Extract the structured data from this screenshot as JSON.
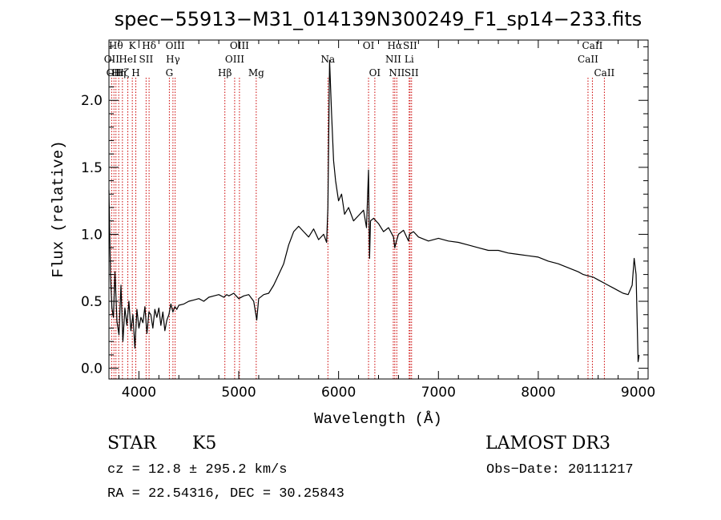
{
  "chart_data": {
    "type": "line",
    "title": "spec−55913−M31_014139N300249_F1_sp14−233.fits",
    "xlabel": "Wavelength (Å)",
    "ylabel": "Flux (relative)",
    "xlim": [
      3700,
      9100
    ],
    "ylim": [
      -0.08,
      2.45
    ],
    "xticks": [
      {
        "value": 4000,
        "label": "4000"
      },
      {
        "value": 5000,
        "label": "5000"
      },
      {
        "value": 6000,
        "label": "6000"
      },
      {
        "value": 7000,
        "label": "7000"
      },
      {
        "value": 8000,
        "label": "8000"
      },
      {
        "value": 9000,
        "label": "9000"
      }
    ],
    "yticks": [
      {
        "value": 0.0,
        "label": "0.0"
      },
      {
        "value": 0.5,
        "label": "0.5"
      },
      {
        "value": 1.0,
        "label": "1.0"
      },
      {
        "value": 1.5,
        "label": "1.5"
      },
      {
        "value": 2.0,
        "label": "2.0"
      }
    ],
    "grid": false,
    "line_color": "#000000",
    "marker_color": "#cc0000",
    "series": [
      {
        "x": [
          3700,
          3715,
          3730,
          3745,
          3760,
          3780,
          3800,
          3820,
          3840,
          3860,
          3880,
          3900,
          3920,
          3940,
          3960,
          3980,
          4000,
          4020,
          4040,
          4060,
          4080,
          4100,
          4120,
          4140,
          4160,
          4180,
          4200,
          4220,
          4240,
          4260,
          4280,
          4300,
          4320,
          4340,
          4360,
          4380,
          4400,
          4450,
          4500,
          4550,
          4600,
          4650,
          4700,
          4750,
          4800,
          4850,
          4880,
          4900,
          4950,
          5000,
          5050,
          5100,
          5150,
          5180,
          5200,
          5250,
          5300,
          5350,
          5400,
          5450,
          5500,
          5550,
          5600,
          5650,
          5700,
          5750,
          5800,
          5850,
          5880,
          5893,
          5910,
          5930,
          5950,
          5970,
          6000,
          6030,
          6060,
          6100,
          6150,
          6200,
          6250,
          6280,
          6300,
          6310,
          6320,
          6350,
          6400,
          6450,
          6500,
          6550,
          6563,
          6580,
          6600,
          6650,
          6700,
          6710,
          6750,
          6800,
          6900,
          7000,
          7100,
          7200,
          7300,
          7400,
          7500,
          7600,
          7700,
          7800,
          7900,
          8000,
          8100,
          8200,
          8300,
          8400,
          8450,
          8500,
          8550,
          8600,
          8650,
          8700,
          8750,
          8800,
          8850,
          8900,
          8940,
          8960,
          8980,
          9000,
          9010
        ],
        "y": [
          1.33,
          0.7,
          0.45,
          0.38,
          0.72,
          0.35,
          0.25,
          0.62,
          0.2,
          0.45,
          0.32,
          0.5,
          0.28,
          0.4,
          0.15,
          0.44,
          0.3,
          0.38,
          0.34,
          0.46,
          0.26,
          0.42,
          0.4,
          0.3,
          0.44,
          0.38,
          0.45,
          0.32,
          0.42,
          0.28,
          0.36,
          0.4,
          0.48,
          0.42,
          0.46,
          0.44,
          0.47,
          0.48,
          0.5,
          0.51,
          0.52,
          0.5,
          0.53,
          0.54,
          0.55,
          0.53,
          0.55,
          0.54,
          0.56,
          0.52,
          0.54,
          0.55,
          0.5,
          0.36,
          0.52,
          0.55,
          0.56,
          0.62,
          0.7,
          0.78,
          0.92,
          1.02,
          1.06,
          1.02,
          0.98,
          1.04,
          0.96,
          1.0,
          0.94,
          1.2,
          2.3,
          1.9,
          1.55,
          1.4,
          1.25,
          1.3,
          1.15,
          1.2,
          1.1,
          1.14,
          1.18,
          1.05,
          1.48,
          0.82,
          1.1,
          1.12,
          1.08,
          1.02,
          1.05,
          0.98,
          0.9,
          0.95,
          1.0,
          1.03,
          0.95,
          1.0,
          1.02,
          0.98,
          0.95,
          0.97,
          0.95,
          0.94,
          0.92,
          0.9,
          0.88,
          0.88,
          0.86,
          0.85,
          0.84,
          0.83,
          0.8,
          0.78,
          0.75,
          0.72,
          0.7,
          0.69,
          0.68,
          0.66,
          0.64,
          0.62,
          0.6,
          0.58,
          0.56,
          0.55,
          0.62,
          0.82,
          0.7,
          0.05,
          0.1
        ]
      }
    ],
    "line_markers": [
      {
        "x": 3727,
        "label": "OII",
        "row": 1
      },
      {
        "x": 3750,
        "label": "OII",
        "row": 2
      },
      {
        "x": 3770,
        "label": "Hθ",
        "row": 0
      },
      {
        "x": 3798,
        "label": "Hη",
        "row": 2
      },
      {
        "x": 3835,
        "label": "Hζ",
        "row": 2
      },
      {
        "x": 3889,
        "label": "HeI",
        "row": 1
      },
      {
        "x": 3934,
        "label": "K",
        "row": 0
      },
      {
        "x": 3969,
        "label": "H",
        "row": 2
      },
      {
        "x": 4072,
        "label": "SII",
        "row": 1
      },
      {
        "x": 4102,
        "label": "Hδ",
        "row": 0
      },
      {
        "x": 4305,
        "label": "G",
        "row": 2
      },
      {
        "x": 4341,
        "label": "Hγ",
        "row": 1
      },
      {
        "x": 4363,
        "label": "OIII",
        "row": 0
      },
      {
        "x": 4861,
        "label": "Hβ",
        "row": 2
      },
      {
        "x": 4959,
        "label": "OIII",
        "row": 1
      },
      {
        "x": 5007,
        "label": "OIII",
        "row": 0
      },
      {
        "x": 5175,
        "label": "Mg",
        "row": 2
      },
      {
        "x": 5893,
        "label": "Na",
        "row": 1
      },
      {
        "x": 6300,
        "label": "OI",
        "row": 0
      },
      {
        "x": 6363,
        "label": "OI",
        "row": 2
      },
      {
        "x": 6548,
        "label": "NII",
        "row": 1
      },
      {
        "x": 6563,
        "label": "Hα",
        "row": 0
      },
      {
        "x": 6583,
        "label": "NII",
        "row": 2
      },
      {
        "x": 6707,
        "label": "Li",
        "row": 1
      },
      {
        "x": 6716,
        "label": "SII",
        "row": 0
      },
      {
        "x": 6731,
        "label": "SII",
        "row": 2
      },
      {
        "x": 8498,
        "label": "CaII",
        "row": 1
      },
      {
        "x": 8542,
        "label": "CaII",
        "row": 0
      },
      {
        "x": 8662,
        "label": "CaII",
        "row": 2
      }
    ]
  },
  "info": {
    "class_label": "STAR",
    "subclass_label": "K5",
    "survey_label": "LAMOST DR3",
    "redshift_text": "cz = 12.8 ± 295.2 km/s",
    "obs_date_text": "Obs−Date: 20111217",
    "coords_text": "RA =  22.54316, DEC =  30.25843"
  }
}
